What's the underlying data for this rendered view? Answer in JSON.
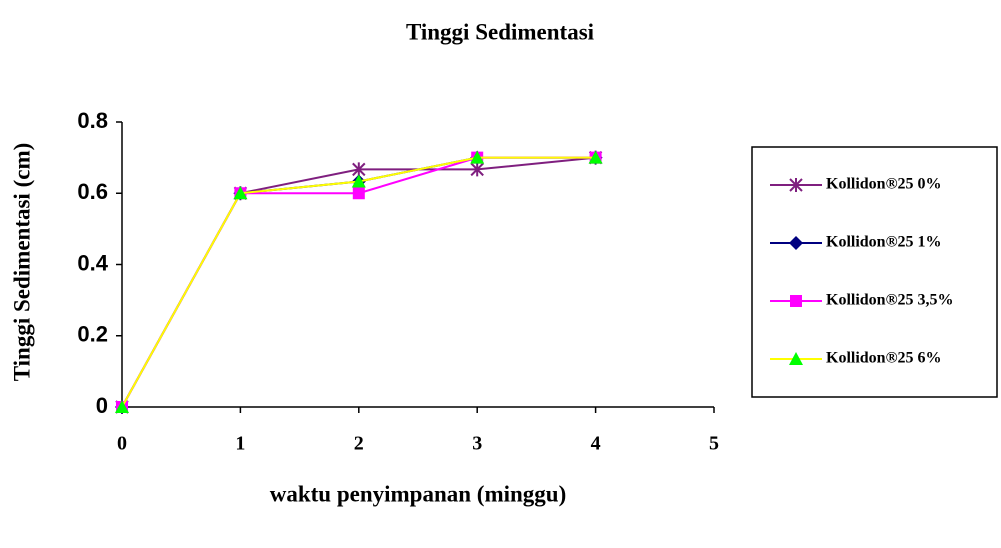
{
  "chart_data": {
    "type": "line",
    "title": "Tinggi Sedimentasi",
    "x_label": "waktu penyimpanan (minggu)",
    "y_label": "Tinggi Sedimentasi (cm)",
    "x": [
      0,
      1,
      2,
      3,
      4
    ],
    "series": [
      {
        "name": "Kollidon®25 0%",
        "color": "#7f1f7f",
        "marker_color": "#7f1f7f",
        "marker": "star",
        "values": [
          0,
          0.6,
          0.667,
          0.667,
          0.7
        ]
      },
      {
        "name": "Kollidon®25 1%",
        "color": "#000080",
        "marker_color": "#000080",
        "marker": "diamond",
        "values": [
          0,
          0.6,
          0.633,
          0.7,
          0.7
        ]
      },
      {
        "name": "Kollidon®25 3,5%",
        "color": "#ff00ff",
        "marker_color": "#ff00ff",
        "marker": "square",
        "values": [
          0,
          0.6,
          0.6,
          0.7,
          0.7
        ]
      },
      {
        "name": "Kollidon®25 6%",
        "color": "#ffff00",
        "marker_color": "#00ff00",
        "marker": "triangle",
        "values": [
          0,
          0.6,
          0.633,
          0.7,
          0.7
        ]
      }
    ],
    "xlim": [
      0,
      5
    ],
    "xticks": [
      0,
      1,
      2,
      3,
      4,
      5
    ],
    "ylim": [
      0,
      0.8
    ],
    "yticks": [
      0,
      0.2,
      0.4,
      0.6,
      0.8
    ],
    "legend": "right"
  }
}
